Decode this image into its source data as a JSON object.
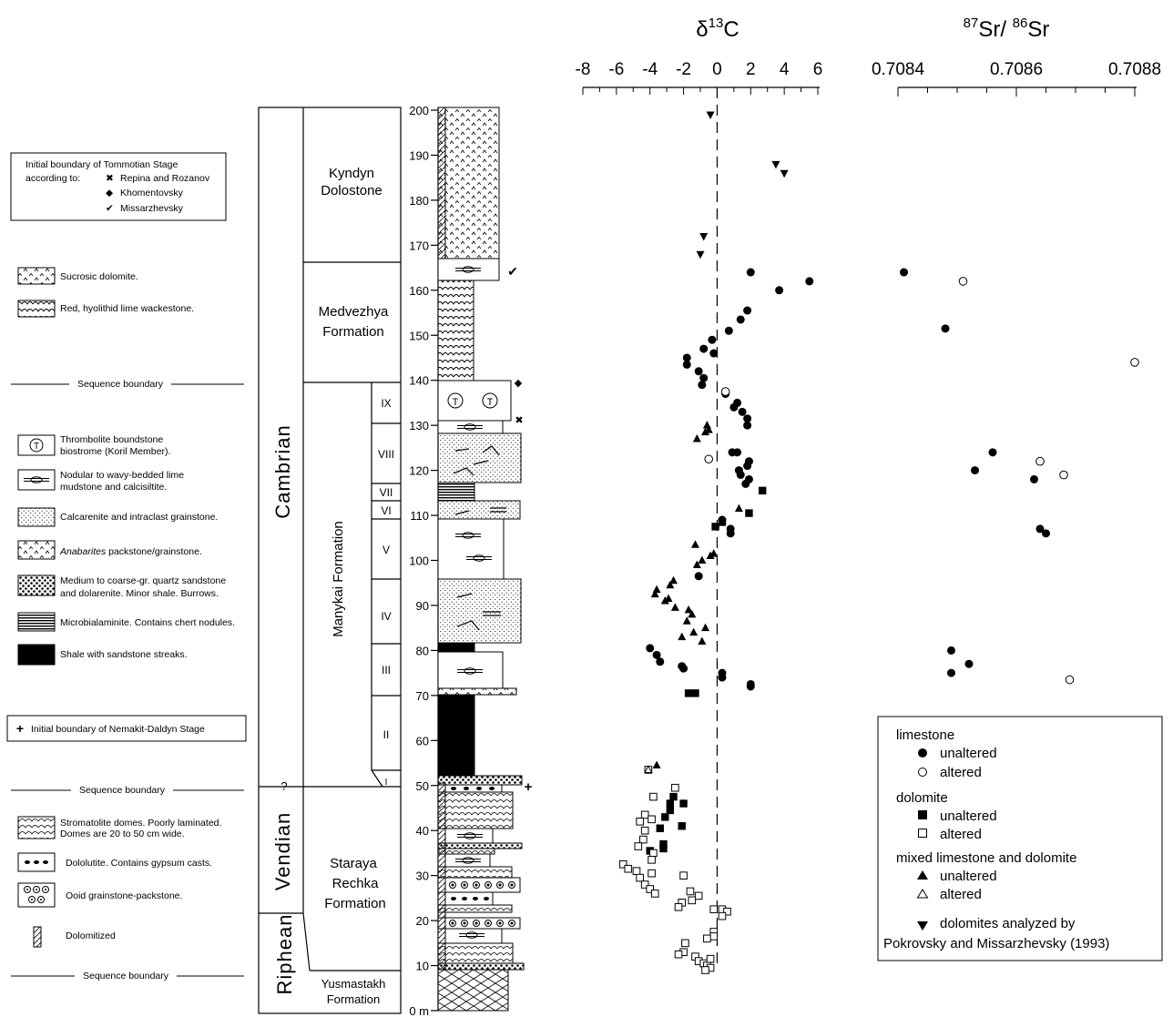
{
  "legend": {
    "tommotian": {
      "line1": "Initial boundary of Tommotian Stage",
      "line2": "according to:",
      "repina": "Repina and Rozanov",
      "khomentovsky": "Khomentovsky",
      "missarzhevsky": "Missarzhevsky"
    },
    "sucrosic": "Sucrosic dolomite.",
    "red_hyolithid": "Red, hyolithid lime wackestone.",
    "sequence_boundary": "Sequence boundary",
    "thrombolite": [
      "Thrombolite boundstone",
      "biostrome (Koril  Member)."
    ],
    "nodular": [
      "Nodular to wavy-bedded lime",
      "mudstone and calcisiltite."
    ],
    "calcarenite": "Calcarenite and intraclast grainstone.",
    "anabarites_italic": "Anabarites",
    "anabarites_rest": " packstone/grainstone.",
    "sandstone": [
      "Medium to coarse-gr. quartz sandstone",
      "and dolarenite.  Minor shale.  Burrows."
    ],
    "microbialaminite": "Microbialaminite.  Contains chert nodules.",
    "shale": "Shale with sandstone streaks.",
    "nemakit": "Initial boundary of Nemakit-Daldyn Stage",
    "stromatolite": [
      "Stromatolite domes.  Poorly laminated.",
      "Domes are 20 to 50 cm wide."
    ],
    "dololutite": "Dololutite.  Contains gypsum casts.",
    "ooid": "Ooid grainstone-packstone.",
    "dolomitized": "Dolomitized"
  },
  "strat": {
    "systems": [
      "Cambrian",
      "Vendian",
      "Riphean"
    ],
    "question": "?",
    "kyndyn": [
      "Kyndyn",
      "Dolostone"
    ],
    "medvezhya": [
      "Medvezhya",
      "Formation"
    ],
    "manykai": "Manykai Formation",
    "staraya": [
      "Staraya",
      "Rechka",
      "Formation"
    ],
    "yusmastakh": [
      "Yusmastakh",
      "Formation"
    ],
    "units": [
      "IX",
      "VIII",
      "VII",
      "VI",
      "V",
      "IV",
      "III",
      "II",
      "I"
    ],
    "depth_ticks": [
      "200",
      "190",
      "180",
      "170",
      "160",
      "150",
      "140",
      "130",
      "120",
      "110",
      "100",
      "90",
      "80",
      "70",
      "60",
      "50",
      "40",
      "30",
      "20",
      "10",
      "0 m"
    ]
  },
  "carbon_axis": {
    "title": "δ",
    "title_sup": "13",
    "title_end": "C",
    "ticks": [
      "-8",
      "-6",
      "-4",
      "-2",
      "0",
      "2",
      "4",
      "6"
    ]
  },
  "sr_axis": {
    "sup1": "87",
    "mid": "Sr/ ",
    "sup2": "86",
    "end": "Sr",
    "ticks": [
      "0.7084",
      "0.7086",
      "0.7088"
    ]
  },
  "point_legend": {
    "limestone": "limestone",
    "dolomite": "dolomite",
    "mixed": "mixed limestone and dolomite",
    "unaltered": "unaltered",
    "altered": "altered",
    "pokrovsky": [
      "dolomites analyzed by",
      "Pokrovsky and Missarzhevsky (1993)"
    ]
  },
  "chart_data": [
    {
      "type": "scatter",
      "x_unit": "δ13C",
      "y_unit": "m",
      "xlim": [
        -8,
        6
      ],
      "ylim": [
        0,
        200
      ],
      "series": [
        {
          "name": "limestone unaltered",
          "marker": "filled-circle",
          "points": [
            [
              2,
              164
            ],
            [
              5.5,
              162
            ],
            [
              3.7,
              160
            ],
            [
              1.8,
              155.5
            ],
            [
              1.4,
              153.5
            ],
            [
              0.7,
              151
            ],
            [
              -0.3,
              149
            ],
            [
              -0.8,
              147
            ],
            [
              -0.2,
              146
            ],
            [
              -1.8,
              145
            ],
            [
              -1.8,
              143.5
            ],
            [
              -1.1,
              142
            ],
            [
              -0.8,
              140.5
            ],
            [
              -0.9,
              139
            ],
            [
              0.5,
              137
            ],
            [
              1.2,
              135
            ],
            [
              1,
              134
            ],
            [
              1.5,
              133
            ],
            [
              1.8,
              131.5
            ],
            [
              1.8,
              130
            ],
            [
              0.9,
              124
            ],
            [
              1.2,
              124
            ],
            [
              1.3,
              120
            ],
            [
              1.8,
              121
            ],
            [
              1.9,
              122
            ],
            [
              1.4,
              119
            ],
            [
              1.7,
              117
            ],
            [
              1.9,
              118
            ],
            [
              0.8,
              107
            ],
            [
              0.8,
              106
            ],
            [
              0.3,
              109
            ],
            [
              -1.1,
              96.5
            ],
            [
              -4,
              80.5
            ],
            [
              -3.6,
              79
            ],
            [
              -3.4,
              77.5
            ],
            [
              -2.1,
              76.5
            ],
            [
              -2,
              76
            ],
            [
              0.3,
              75
            ],
            [
              0.3,
              74
            ],
            [
              2,
              72.5
            ],
            [
              2,
              72
            ]
          ]
        },
        {
          "name": "limestone altered",
          "marker": "open-circle",
          "points": [
            [
              0.5,
              137.5
            ],
            [
              -0.5,
              122.5
            ]
          ]
        },
        {
          "name": "dolomite unaltered",
          "marker": "filled-square",
          "points": [
            [
              2.7,
              115.5
            ],
            [
              1.9,
              110.5
            ],
            [
              0.3,
              108.5
            ],
            [
              -0.1,
              107.5
            ],
            [
              -1.7,
              70.5
            ],
            [
              -1.3,
              70.5
            ],
            [
              -2.6,
              47.5
            ],
            [
              -2.8,
              46
            ],
            [
              -2,
              46
            ],
            [
              -2.8,
              44.5
            ],
            [
              -3.1,
              43
            ],
            [
              -2.1,
              41
            ],
            [
              -3.4,
              40.5
            ],
            [
              -3.2,
              37
            ],
            [
              -4,
              35.5
            ],
            [
              -3.2,
              36
            ]
          ]
        },
        {
          "name": "dolomite altered",
          "marker": "open-square",
          "points": [
            [
              -4.1,
              53.5
            ],
            [
              -2.5,
              49.5
            ],
            [
              -3.8,
              47.5
            ],
            [
              -4.3,
              43.5
            ],
            [
              -3.9,
              42.5
            ],
            [
              -4.6,
              42
            ],
            [
              -4.3,
              40
            ],
            [
              -4.4,
              38
            ],
            [
              -4.7,
              36.5
            ],
            [
              -3.8,
              35
            ],
            [
              -3.9,
              33.5
            ],
            [
              -5.6,
              32.5
            ],
            [
              -5.3,
              31.5
            ],
            [
              -4.8,
              31
            ],
            [
              -3.9,
              30.5
            ],
            [
              -4.6,
              29.5
            ],
            [
              -4.3,
              28
            ],
            [
              -4,
              27
            ],
            [
              -3.7,
              26
            ],
            [
              -2,
              30
            ],
            [
              -1.6,
              26.5
            ],
            [
              -1.1,
              25.5
            ],
            [
              -1.5,
              24.5
            ],
            [
              -2.1,
              24
            ],
            [
              -2.3,
              23
            ],
            [
              -0.2,
              22.5
            ],
            [
              0.3,
              22.5
            ],
            [
              0.6,
              22
            ],
            [
              0.3,
              21
            ],
            [
              -0.2,
              17.5
            ],
            [
              -0.2,
              16.5
            ],
            [
              -0.6,
              16
            ],
            [
              -1.3,
              12
            ],
            [
              -1.9,
              15
            ],
            [
              -2,
              13
            ],
            [
              -2.3,
              12.5
            ],
            [
              -1.1,
              11
            ],
            [
              -0.8,
              10.5
            ],
            [
              -0.6,
              10
            ],
            [
              -0.4,
              9.5
            ],
            [
              -0.7,
              9
            ],
            [
              -0.4,
              11.5
            ]
          ]
        },
        {
          "name": "mixed limestone and dolomite unaltered",
          "marker": "filled-triangle",
          "points": [
            [
              -0.6,
              130
            ],
            [
              -0.5,
              129
            ],
            [
              -1.2,
              127
            ],
            [
              -0.7,
              128.5
            ],
            [
              1.3,
              111.5
            ],
            [
              -1.3,
              103.5
            ],
            [
              -0.2,
              101.5
            ],
            [
              -0.4,
              101
            ],
            [
              -0.9,
              100
            ],
            [
              -1.2,
              99
            ],
            [
              -2.6,
              95.5
            ],
            [
              -2.8,
              94.5
            ],
            [
              -3.6,
              93.5
            ],
            [
              -3.7,
              92.5
            ],
            [
              -2.9,
              91.5
            ],
            [
              -3.1,
              91
            ],
            [
              -2.5,
              89.5
            ],
            [
              -1.7,
              89
            ],
            [
              -1.5,
              88
            ],
            [
              -1.8,
              86.5
            ],
            [
              -0.7,
              85
            ],
            [
              -1.4,
              84
            ],
            [
              -2.1,
              83
            ],
            [
              -0.9,
              82
            ],
            [
              -3.6,
              54.5
            ]
          ]
        },
        {
          "name": "mixed limestone and dolomite altered",
          "marker": "open-triangle",
          "points": [
            [
              -4.1,
              53.5
            ]
          ]
        },
        {
          "name": "dolomites analyzed by Pokrovsky and Missarzhevsky (1993)",
          "marker": "filled-down-triangle",
          "points": [
            [
              -0.4,
              199
            ],
            [
              3.5,
              188
            ],
            [
              4,
              186
            ],
            [
              -0.8,
              172
            ],
            [
              -1,
              168
            ]
          ]
        }
      ]
    },
    {
      "type": "scatter",
      "x_unit": "87Sr/86Sr",
      "y_unit": "m",
      "xlim": [
        0.7084,
        0.7088
      ],
      "ylim": [
        0,
        200
      ],
      "series": [
        {
          "name": "limestone unaltered",
          "marker": "filled-circle",
          "points": [
            [
              0.70841,
              164
            ],
            [
              0.70848,
              151.5
            ],
            [
              0.70856,
              124
            ],
            [
              0.70853,
              120
            ],
            [
              0.70863,
              118
            ],
            [
              0.70864,
              107
            ],
            [
              0.70865,
              106
            ],
            [
              0.70849,
              80
            ],
            [
              0.70849,
              75
            ],
            [
              0.70852,
              77
            ]
          ]
        },
        {
          "name": "limestone altered",
          "marker": "open-circle",
          "points": [
            [
              0.70851,
              162
            ],
            [
              0.7088,
              144
            ],
            [
              0.70864,
              122
            ],
            [
              0.70868,
              119
            ],
            [
              0.70869,
              73.5
            ]
          ]
        }
      ]
    }
  ]
}
